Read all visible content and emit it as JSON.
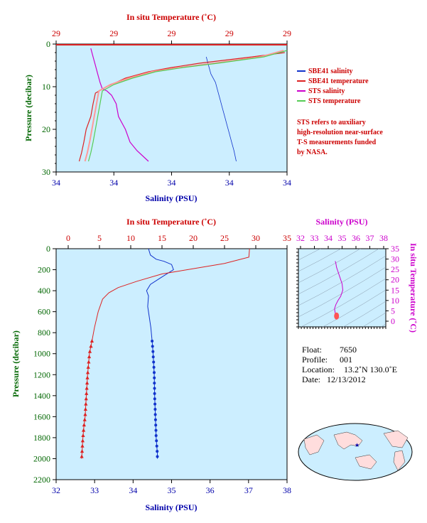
{
  "colors": {
    "plot_bg": "#cceeff",
    "sbe41_salinity": "#1133cc",
    "sbe41_temperature": "#dd2222",
    "sts_salinity": "#cc00cc",
    "sts_temperature": "#55cc55",
    "sts_temperature_pink": "#ff9999",
    "axis_red": "#cc0000",
    "axis_blue": "#0000aa",
    "axis_magenta": "#cc00cc",
    "axis_green": "#336633"
  },
  "top_panel": {
    "title_top": "In situ Temperature (˚C)",
    "title_bottom": "Salinity (PSU)",
    "title_left": "Pressure (decibar)",
    "temp_ticks": [
      "29",
      "29",
      "29",
      "29",
      "29"
    ],
    "sal_ticks": [
      "34",
      "34",
      "34",
      "34",
      "34"
    ],
    "pressure_ticks": [
      "0",
      "10",
      "20",
      "30"
    ]
  },
  "legend": {
    "items": [
      {
        "label": "SBE41 salinity",
        "color": "#1133cc"
      },
      {
        "label": "SBE41 temperature",
        "color": "#dd2222"
      },
      {
        "label": "STS salinity",
        "color": "#cc00cc"
      },
      {
        "label": "STS temperature",
        "color": "#55cc55"
      }
    ],
    "note": [
      "STS refers to auxiliary",
      "high-resolution near-surface",
      "T-S measurements funded",
      "by NASA."
    ]
  },
  "bottom_panel": {
    "title_top": "In situ Temperature (˚C)",
    "title_bottom": "Salinity (PSU)",
    "title_left": "Pressure (decibar)",
    "temp_ticks": [
      "0",
      "5",
      "10",
      "15",
      "20",
      "25",
      "30",
      "35"
    ],
    "sal_ticks": [
      "32",
      "33",
      "34",
      "35",
      "36",
      "37",
      "38"
    ],
    "pressure_ticks": [
      "0",
      "200",
      "400",
      "600",
      "800",
      "1000",
      "1200",
      "1400",
      "1600",
      "1800",
      "2000",
      "2200"
    ]
  },
  "ts_panel": {
    "title_top": "Salinity (PSU)",
    "title_right": "In situ Temperature (˚C)",
    "sal_ticks": [
      "32",
      "33",
      "34",
      "35",
      "36",
      "37",
      "38"
    ],
    "temp_ticks": [
      "0",
      "5",
      "10",
      "15",
      "20",
      "25",
      "30",
      "35"
    ]
  },
  "info": {
    "float_label": "Float:",
    "float_value": "7650",
    "profile_label": "Profile:",
    "profile_value": "001",
    "location_label": "Location:",
    "location_value": "13.2˚N  130.0˚E",
    "date_label": "Date:",
    "date_value": "12/13/2012"
  },
  "chart_data": [
    {
      "type": "line",
      "name_ref": "top-near-surface-profile",
      "title": "",
      "xlabel": "Salinity (PSU)",
      "x2label": "In situ Temperature (˚C)",
      "ylabel": "Pressure (decibar)",
      "ylim": [
        30,
        0
      ],
      "series": [
        {
          "name": "SBE41 salinity",
          "unit": "sal_frac",
          "x": [
            0.65,
            0.66,
            0.67,
            0.69,
            0.7,
            0.71,
            0.72,
            0.73,
            0.74,
            0.75,
            0.76,
            0.77,
            0.78
          ],
          "y": [
            3,
            5,
            7,
            9,
            11,
            13,
            15,
            17,
            19,
            21,
            23,
            25,
            27.5
          ]
        },
        {
          "name": "SBE41 temperature",
          "unit": "temp_frac",
          "x": [
            0.99,
            0.85,
            0.62,
            0.5,
            0.4,
            0.3,
            0.22,
            0.17,
            0.16,
            0.15,
            0.13,
            0.12,
            0.11,
            0.1
          ],
          "y": [
            2,
            3,
            4.5,
            5.5,
            6.5,
            8,
            10,
            11.5,
            14,
            17,
            20,
            23,
            25.5,
            27.5
          ]
        },
        {
          "name": "STS salinity",
          "unit": "sal_frac",
          "x": [
            0.15,
            0.16,
            0.17,
            0.18,
            0.19,
            0.2,
            0.22,
            0.24,
            0.26,
            0.27,
            0.3,
            0.32,
            0.35,
            0.4
          ],
          "y": [
            1,
            3,
            5,
            7,
            9,
            10.5,
            11,
            12,
            14,
            17,
            20,
            23,
            25,
            27.5
          ]
        },
        {
          "name": "STS temperature",
          "unit": "temp_frac",
          "x": [
            1.0,
            0.9,
            0.7,
            0.55,
            0.43,
            0.33,
            0.25,
            0.2,
            0.19,
            0.18,
            0.17,
            0.16,
            0.15,
            0.14
          ],
          "y": [
            1.5,
            3,
            4.5,
            5.5,
            6.5,
            8,
            9.5,
            11,
            14,
            17,
            20,
            23,
            25.5,
            27.5
          ]
        }
      ]
    },
    {
      "type": "line",
      "name_ref": "bottom-full-profile",
      "title": "",
      "xlabel": "Salinity (PSU)",
      "x2label": "In situ Temperature (˚C)",
      "ylabel": "Pressure (decibar)",
      "xlim": [
        32,
        38
      ],
      "x2lim": [
        0,
        35
      ],
      "ylim": [
        2200,
        0
      ],
      "series": [
        {
          "name": "SBE41 salinity",
          "x": [
            34.4,
            34.45,
            34.6,
            34.8,
            35.0,
            35.05,
            34.7,
            34.45,
            34.35,
            34.4,
            34.38,
            34.42,
            34.46,
            34.5,
            34.52,
            34.55,
            34.56,
            34.58,
            34.6,
            34.62,
            34.63,
            34.63
          ],
          "y": [
            0,
            60,
            100,
            120,
            150,
            200,
            280,
            340,
            400,
            450,
            550,
            650,
            750,
            900,
            1000,
            1200,
            1400,
            1600,
            1800,
            1900,
            1950,
            2000
          ],
          "markers_from_y": 880
        },
        {
          "name": "SBE41 temperature",
          "x": [
            29.0,
            28.9,
            25,
            20,
            15,
            11,
            8,
            6.5,
            5.5,
            4.8,
            4.2,
            3.8,
            3.4,
            3.1,
            2.9,
            2.7,
            2.5,
            2.35,
            2.25,
            2.15
          ],
          "y": [
            0,
            80,
            140,
            190,
            240,
            310,
            370,
            420,
            480,
            600,
            750,
            880,
            1000,
            1200,
            1400,
            1600,
            1700,
            1800,
            1900,
            2000
          ],
          "markers_from_y": 880
        }
      ]
    },
    {
      "type": "line",
      "name_ref": "ts-diagram",
      "xlabel": "Salinity (PSU)",
      "ylabel": "In situ Temperature (˚C)",
      "xlim": [
        32,
        38
      ],
      "ylim": [
        -2,
        35
      ],
      "series": [
        {
          "name": "T-S curve",
          "x": [
            34.5,
            34.55,
            34.6,
            34.7,
            34.85,
            35.0,
            35.05,
            34.9,
            34.7,
            34.55,
            34.45,
            34.5,
            34.6
          ],
          "y": [
            29,
            28,
            26,
            24,
            21,
            18,
            15,
            12,
            10,
            8,
            6,
            4,
            2
          ]
        }
      ]
    }
  ]
}
